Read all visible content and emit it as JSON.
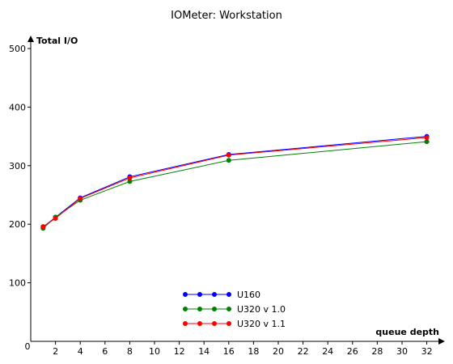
{
  "chart_data": {
    "type": "line",
    "title": "IOMeter: Workstation",
    "xlabel": "queue depth",
    "ylabel": "Total I/O",
    "x": [
      1,
      2,
      4,
      8,
      16,
      32
    ],
    "xlim": [
      0,
      33
    ],
    "ylim": [
      0,
      500
    ],
    "xticks": [
      2,
      4,
      6,
      8,
      10,
      12,
      14,
      16,
      18,
      20,
      22,
      24,
      26,
      28,
      30,
      32
    ],
    "yticks": [
      100,
      200,
      300,
      400,
      500
    ],
    "origin_label": "0",
    "grid": false,
    "legend_position": "bottom-center",
    "series": [
      {
        "name": "U160",
        "color": "#0000ff",
        "values": [
          195,
          212,
          245,
          281,
          319,
          350
        ]
      },
      {
        "name": "U320 v 1.0",
        "color": "#008000",
        "values": [
          193,
          212,
          241,
          273,
          309,
          341
        ]
      },
      {
        "name": "U320 v 1.1",
        "color": "#ff0000",
        "values": [
          196,
          210,
          244,
          279,
          318,
          348
        ]
      }
    ]
  }
}
